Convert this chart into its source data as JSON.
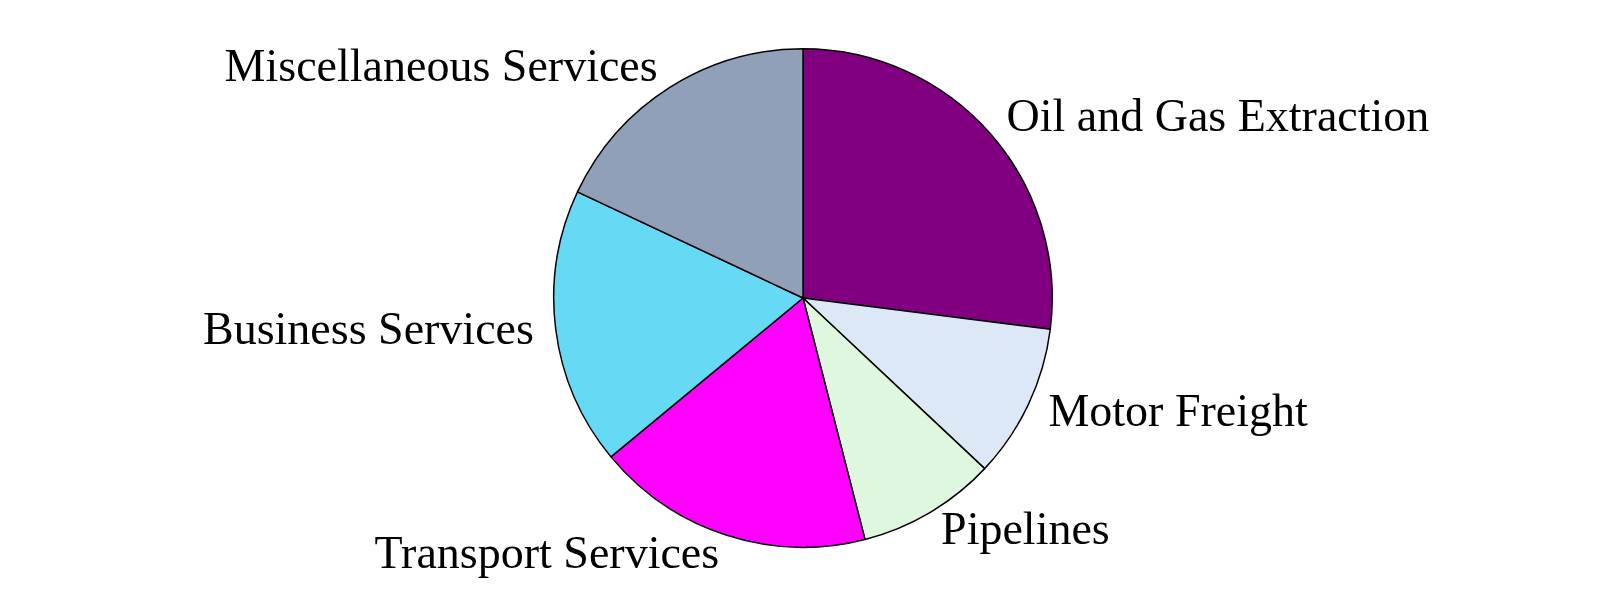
{
  "chart_data": {
    "type": "pie",
    "categories": [
      "Oil and Gas Extraction",
      "Motor Freight",
      "Pipelines",
      "Transport Services",
      "Business Services",
      "Miscellaneous Services"
    ],
    "values": [
      27,
      10,
      9,
      18,
      18,
      18
    ],
    "colors": [
      "#800080",
      "#dde8f6",
      "#dff7df",
      "#ff00ff",
      "#66d9f5",
      "#8fa0b8"
    ],
    "legend": false
  }
}
